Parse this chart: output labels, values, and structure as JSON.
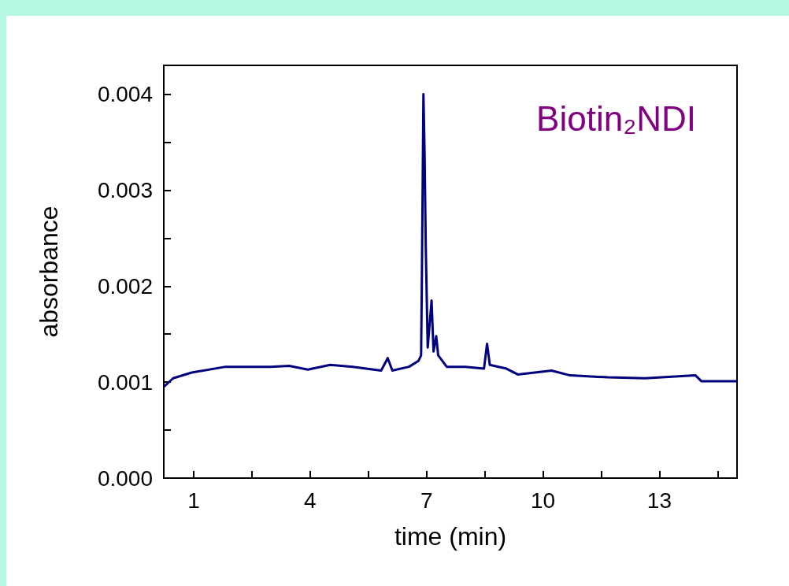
{
  "chart_data": {
    "type": "line",
    "xlabel": "time (min)",
    "ylabel": "absorbance",
    "annotations": [
      "Biotin₂NDI"
    ],
    "x": [
      0.23,
      0.47,
      0.95,
      1.82,
      2.98,
      3.46,
      3.94,
      4.52,
      5.1,
      5.83,
      6.0,
      6.12,
      6.55,
      6.79,
      6.86,
      6.88,
      6.92,
      6.95,
      6.98,
      7.03,
      7.13,
      7.18,
      7.25,
      7.3,
      7.52,
      8.0,
      8.48,
      8.56,
      8.63,
      9.06,
      9.35,
      10.22,
      10.7,
      11.67,
      12.63,
      13.93,
      14.08,
      15.0
    ],
    "series": [
      {
        "color": "#000080",
        "values": [
          0.00095,
          0.00104,
          0.0011,
          0.00116,
          0.00116,
          0.00117,
          0.00113,
          0.00118,
          0.00116,
          0.00112,
          0.00125,
          0.00112,
          0.00116,
          0.00122,
          0.00128,
          0.00208,
          0.004,
          0.00338,
          0.00242,
          0.00136,
          0.00185,
          0.00132,
          0.00148,
          0.00128,
          0.00116,
          0.00116,
          0.00114,
          0.0014,
          0.00118,
          0.00114,
          0.00108,
          0.00112,
          0.00107,
          0.00105,
          0.00104,
          0.00107,
          0.00101,
          0.00101
        ]
      }
    ],
    "xlim": [
      0.23,
      15
    ],
    "xticks": [
      1,
      {
        "value": 2.5,
        "label": null
      },
      4,
      {
        "value": 5.5,
        "label": null
      },
      7,
      {
        "value": 8.5,
        "label": null
      },
      10,
      {
        "value": 11.5,
        "label": null
      },
      13,
      {
        "value": 14.5,
        "label": null
      }
    ],
    "ylim": [
      0,
      0.0043
    ],
    "yticks": [
      {
        "value": 0,
        "label": "0.000"
      },
      {
        "value": 0.0005,
        "label": null
      },
      0.001,
      {
        "value": 0.0015,
        "label": null
      },
      0.002,
      {
        "value": 0.0025,
        "label": null
      },
      0.003,
      {
        "value": 0.0035,
        "label": null
      },
      0.004
    ],
    "grid": false,
    "marker": "none",
    "line_style": "solid"
  }
}
